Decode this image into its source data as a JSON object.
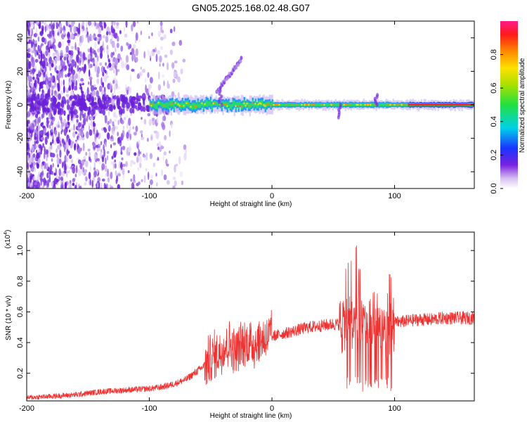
{
  "title": "GN05.2025.168.02.48.G07",
  "chart_data": [
    {
      "type": "heatmap",
      "xlabel": "Height of straight line (km)",
      "ylabel": "Frequency (Hz)",
      "xlim": [
        -200,
        165
      ],
      "ylim": [
        -50,
        50
      ],
      "xticks": [
        -200,
        -100,
        0,
        100
      ],
      "yticks": [
        -40,
        -20,
        0,
        20,
        40
      ],
      "colorbar": {
        "label": "Normalized spectral amplitude",
        "range": [
          0,
          1
        ],
        "ticks": [
          0.0,
          0.2,
          0.4,
          0.6,
          0.8
        ]
      },
      "features": {
        "noise_region_x": [
          -200,
          -85
        ],
        "carrier_frequency_hz": 0,
        "carrier_strong_from_x": -100,
        "diagonal_feature": {
          "x": [
            -45,
            -25
          ],
          "y": [
            8,
            27
          ]
        }
      }
    },
    {
      "type": "line",
      "xlabel": "Height of straight line (km)",
      "ylabel": "SNR (10 * v/v)",
      "yscale_label": "(x10",
      "yscale_exp": "4",
      "yscale_close": ")",
      "xlim": [
        -200,
        165
      ],
      "ylim": [
        0.02,
        1.12
      ],
      "xticks": [
        -200,
        -100,
        0,
        100
      ],
      "yticks": [
        0.2,
        0.4,
        0.6,
        0.8,
        1.0
      ],
      "series": [
        {
          "color": "#ee3333",
          "x": [
            -200,
            -180,
            -160,
            -140,
            -120,
            -100,
            -90,
            -80,
            -70,
            -60,
            -55,
            -50,
            -45,
            -40,
            -35,
            -30,
            -25,
            -20,
            -15,
            -10,
            -5,
            0,
            10,
            20,
            30,
            40,
            50,
            55,
            60,
            65,
            70,
            75,
            80,
            85,
            90,
            95,
            100,
            110,
            120,
            130,
            140,
            150,
            165
          ],
          "values": [
            0.04,
            0.05,
            0.06,
            0.08,
            0.09,
            0.1,
            0.11,
            0.13,
            0.16,
            0.22,
            0.25,
            0.3,
            0.32,
            0.36,
            0.4,
            0.34,
            0.38,
            0.4,
            0.39,
            0.41,
            0.43,
            0.44,
            0.46,
            0.48,
            0.5,
            0.51,
            0.52,
            0.52,
            0.53,
            0.52,
            0.53,
            0.52,
            0.52,
            0.53,
            0.51,
            0.52,
            0.53,
            0.54,
            0.55,
            0.55,
            0.56,
            0.56,
            0.56
          ]
        }
      ]
    }
  ]
}
